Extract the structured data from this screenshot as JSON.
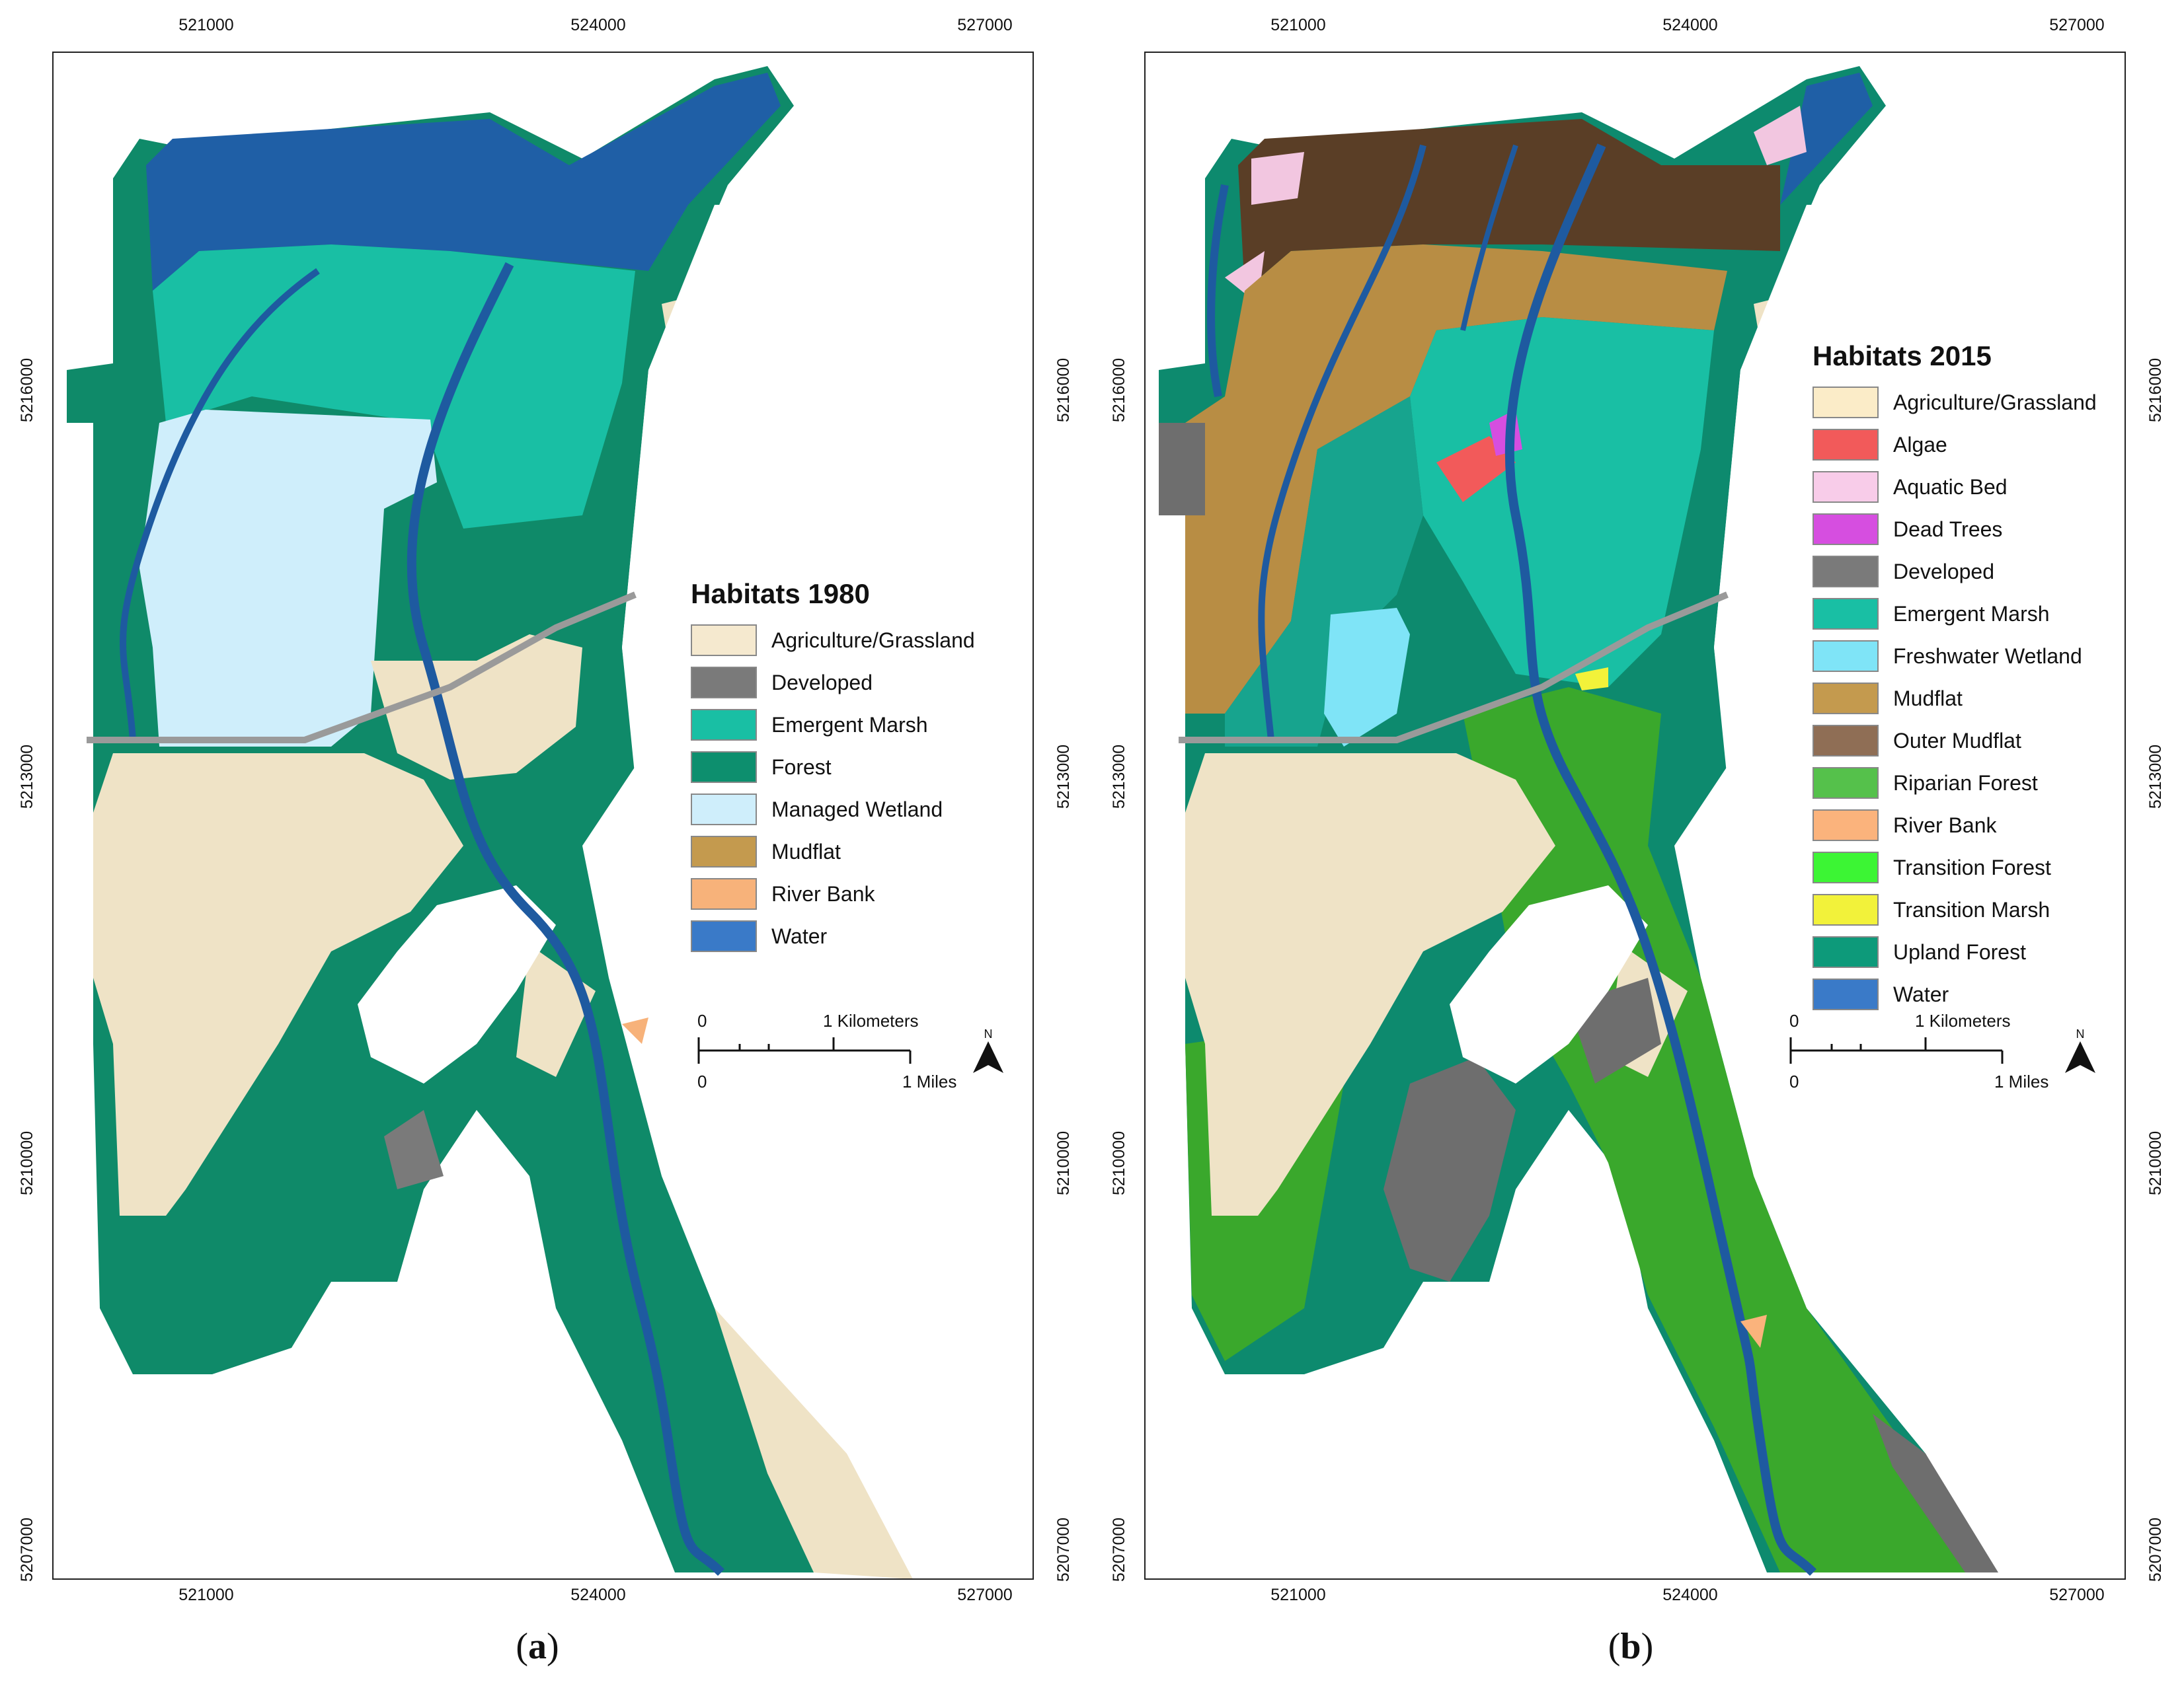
{
  "panels": [
    {
      "id": "a",
      "label": "a",
      "legend": {
        "title": "Habitats 1980",
        "items": [
          {
            "label": "Agriculture/Grassland",
            "color": "#f5e9cf"
          },
          {
            "label": "Developed",
            "color": "#7a7a7a"
          },
          {
            "label": "Emergent Marsh",
            "color": "#19bfa4"
          },
          {
            "label": "Forest",
            "color": "#0d8f6e"
          },
          {
            "label": "Managed Wetland",
            "color": "#cfeefb"
          },
          {
            "label": "Mudflat",
            "color": "#c49a4e"
          },
          {
            "label": "River Bank",
            "color": "#f7b27a"
          },
          {
            "label": "Water",
            "color": "#3a7ac8"
          }
        ]
      },
      "scalebar": {
        "km_start": "0",
        "km_end": "1 Kilometers",
        "mi_start": "0",
        "mi_end": "1 Miles"
      },
      "north_label": "N",
      "axes": {
        "x_ticks": [
          "521000",
          "524000",
          "527000"
        ],
        "y_ticks": [
          "5216000",
          "5213000",
          "5210000",
          "5207000"
        ]
      }
    },
    {
      "id": "b",
      "label": "b",
      "legend": {
        "title": "Habitats 2015",
        "items": [
          {
            "label": "Agriculture/Grassland",
            "color": "#fbecc8"
          },
          {
            "label": "Algae",
            "color": "#f25a5a"
          },
          {
            "label": "Aquatic Bed",
            "color": "#f8cce9"
          },
          {
            "label": "Dead Trees",
            "color": "#d64ee0"
          },
          {
            "label": "Developed",
            "color": "#7a7a7a"
          },
          {
            "label": "Emergent Marsh",
            "color": "#19bfa4"
          },
          {
            "label": "Freshwater Wetland",
            "color": "#7fe4f7"
          },
          {
            "label": "Mudflat",
            "color": "#c49a4e"
          },
          {
            "label": "Outer Mudflat",
            "color": "#8f6e55"
          },
          {
            "label": "Riparian Forest",
            "color": "#55c14b"
          },
          {
            "label": "River Bank",
            "color": "#fbb37c"
          },
          {
            "label": "Transition Forest",
            "color": "#3cf534"
          },
          {
            "label": "Transition Marsh",
            "color": "#f2f23a"
          },
          {
            "label": "Upland Forest",
            "color": "#0d9a7a"
          },
          {
            "label": "Water",
            "color": "#3a7ac8"
          }
        ]
      },
      "scalebar": {
        "km_start": "0",
        "km_end": "1 Kilometers",
        "mi_start": "0",
        "mi_end": "1 Miles"
      },
      "north_label": "N",
      "axes": {
        "x_ticks": [
          "521000",
          "524000",
          "527000"
        ],
        "y_ticks": [
          "5216000",
          "5213000",
          "5210000",
          "5207000"
        ]
      }
    }
  ]
}
